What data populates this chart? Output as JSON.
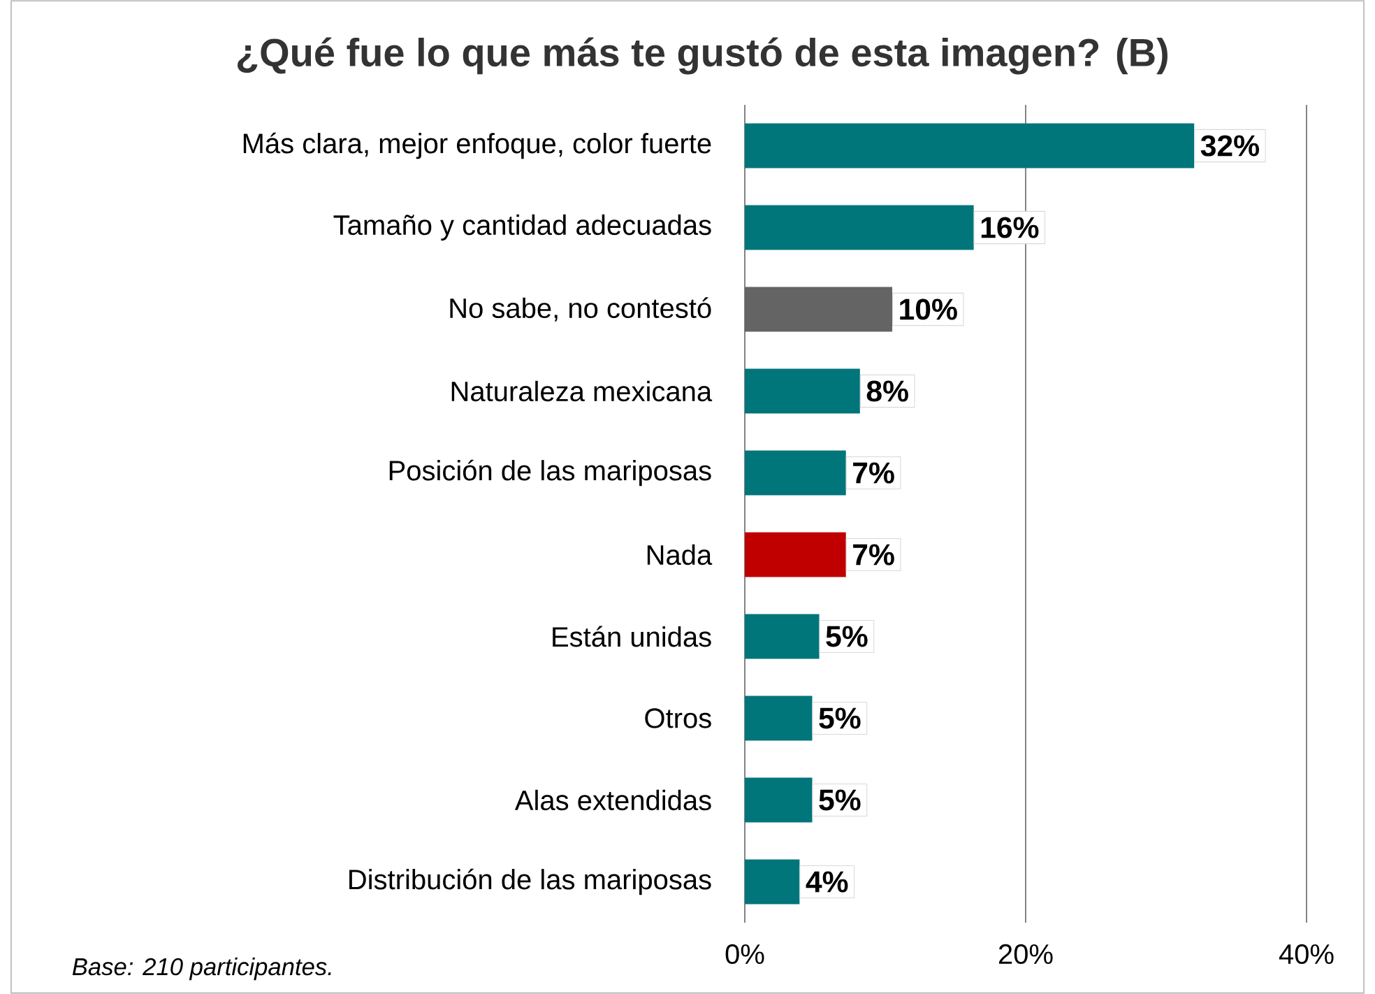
{
  "chart_data": {
    "type": "bar",
    "orientation": "horizontal",
    "title": "¿Qué fue lo que más te gustó de esta imagen? (B)",
    "categories": [
      "Más clara, mejor enfoque, color fuerte",
      "Tamaño y cantidad adecuadas",
      "No sabe, no contestó",
      "Naturaleza mexicana",
      "Posición de las mariposas",
      "Nada",
      "Están unidas",
      "Otros",
      "Alas extendidas",
      "Distribución de las mariposas"
    ],
    "values": [
      32.0,
      16.3,
      10.5,
      8.2,
      7.2,
      7.2,
      5.3,
      4.8,
      4.8,
      3.9
    ],
    "value_labels": [
      "32%",
      "16%",
      "10%",
      "8%",
      "7%",
      "7%",
      "5%",
      "5%",
      "5%",
      "4%"
    ],
    "colors": [
      "#00757a",
      "#00757a",
      "#646464",
      "#00757a",
      "#00757a",
      "#c00000",
      "#00757a",
      "#00757a",
      "#00757a",
      "#00757a"
    ],
    "xlim": [
      0,
      40
    ],
    "xticks": [
      {
        "value": 0,
        "label": "0%"
      },
      {
        "value": 20,
        "label": "20%"
      },
      {
        "value": 40,
        "label": "40%"
      }
    ],
    "grid": "x",
    "annotations": [
      "Base: 210 participantes."
    ]
  }
}
